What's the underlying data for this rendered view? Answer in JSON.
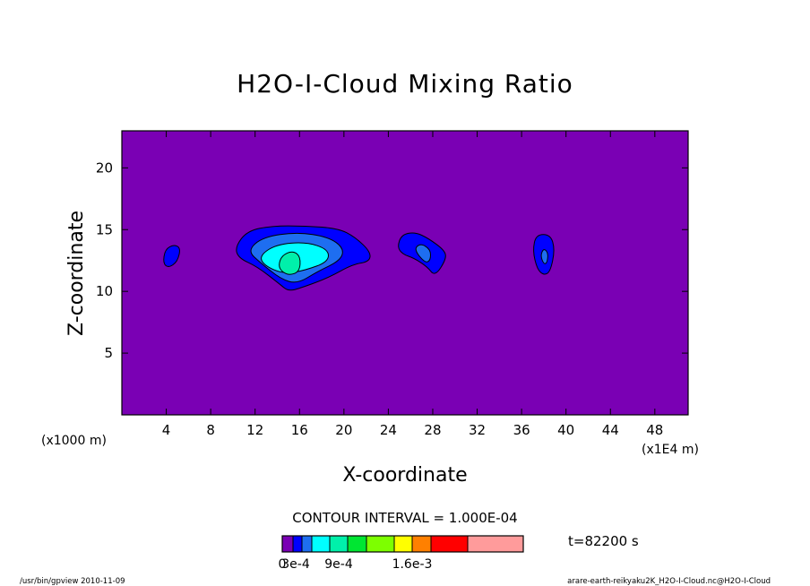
{
  "chart_data": {
    "type": "heatmap",
    "title": "H2O-I-Cloud Mixing Ratio",
    "xlabel": "X-coordinate",
    "ylabel": "Z-coordinate",
    "x_unit_left": "(x1000 m)",
    "x_unit_right": "(x1E4 m)",
    "xlim": [
      0,
      51
    ],
    "ylim": [
      0,
      23
    ],
    "x_ticks": [
      4,
      8,
      12,
      16,
      20,
      24,
      28,
      32,
      36,
      40,
      44,
      48
    ],
    "y_ticks": [
      5,
      10,
      15,
      20
    ],
    "contour_interval": "CONTOUR INTERVAL = 1.000E-04",
    "time_label": "t=82200 s",
    "background_color": "#7a00b4",
    "colorbar": {
      "colors": [
        "#7a00b4",
        "#0000ff",
        "#1e6ef0",
        "#00ffff",
        "#00f0aa",
        "#00e632",
        "#7dff00",
        "#ffff00",
        "#ff8000",
        "#ff0000",
        "#ff9b9b"
      ],
      "labels": [
        {
          "text": "0",
          "index": 0
        },
        {
          "text": "3e-4",
          "index": 1.3
        },
        {
          "text": "9e-4",
          "index": 4.5
        },
        {
          "text": "1.6e-3",
          "index": 8
        }
      ]
    },
    "cloud_features": [
      {
        "id": "cloud-a",
        "center": [
          4.4,
          12.8
        ],
        "level": 1
      },
      {
        "id": "cloud-b",
        "center": [
          16,
          13
        ],
        "level": 1
      },
      {
        "id": "cloud-b-2",
        "center": [
          15.5,
          12.9
        ],
        "level": 2
      },
      {
        "id": "cloud-b-3",
        "center": [
          15.5,
          12.7
        ],
        "level": 3
      },
      {
        "id": "cloud-b-4",
        "center": [
          15,
          12.2
        ],
        "level": 4
      },
      {
        "id": "cloud-c",
        "center": [
          27,
          13.3
        ],
        "level": 1
      },
      {
        "id": "cloud-c-2",
        "center": [
          27.2,
          12.9
        ],
        "level": 2
      },
      {
        "id": "cloud-d",
        "center": [
          38.1,
          13
        ],
        "level": 1
      },
      {
        "id": "cloud-d-2",
        "center": [
          38.1,
          12.9
        ],
        "level": 2
      }
    ]
  },
  "footer": {
    "left": "/usr/bin/gpview  2010-11-09",
    "right": "arare-earth-reikyaku2K_H2O-I-Cloud.nc@H2O-I-Cloud"
  }
}
